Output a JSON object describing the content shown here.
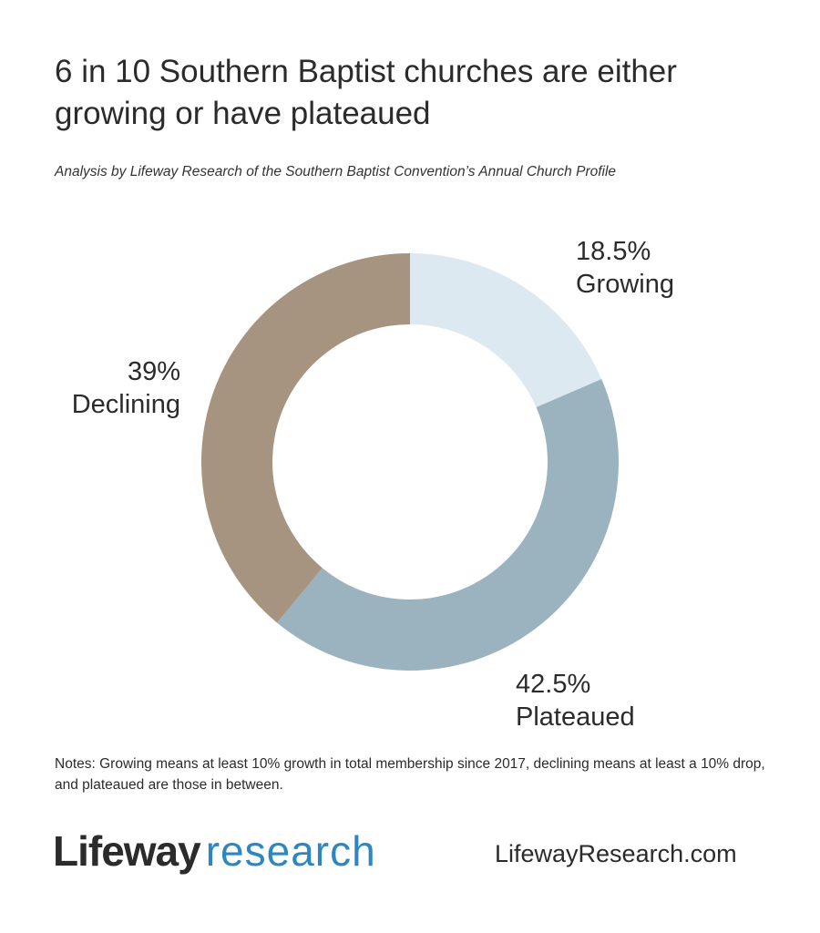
{
  "header": {
    "title": "6 in 10 Southern Baptist churches are either growing or have plateaued",
    "subtitle": "Analysis by Lifeway Research of the Southern Baptist Convention’s Annual Church Profile"
  },
  "chart_data": {
    "type": "pie",
    "donut": true,
    "legend": "none",
    "slices": [
      {
        "label": "Growing",
        "value": 18.5,
        "value_label": "18.5%",
        "color": "#dde9f1"
      },
      {
        "label": "Plateaued",
        "value": 42.5,
        "value_label": "42.5%",
        "color": "#9bb3bf"
      },
      {
        "label": "Declining",
        "value": 39,
        "value_label": "39%",
        "color": "#a69380"
      }
    ]
  },
  "notes": "Notes: Growing means at least 10% growth in total membership since 2017, declining means at least a 10% drop, and plateaued are those in between.",
  "footer": {
    "logo_part1": "Lifeway",
    "logo_part2": "research",
    "website": "LifewayResearch.com"
  }
}
